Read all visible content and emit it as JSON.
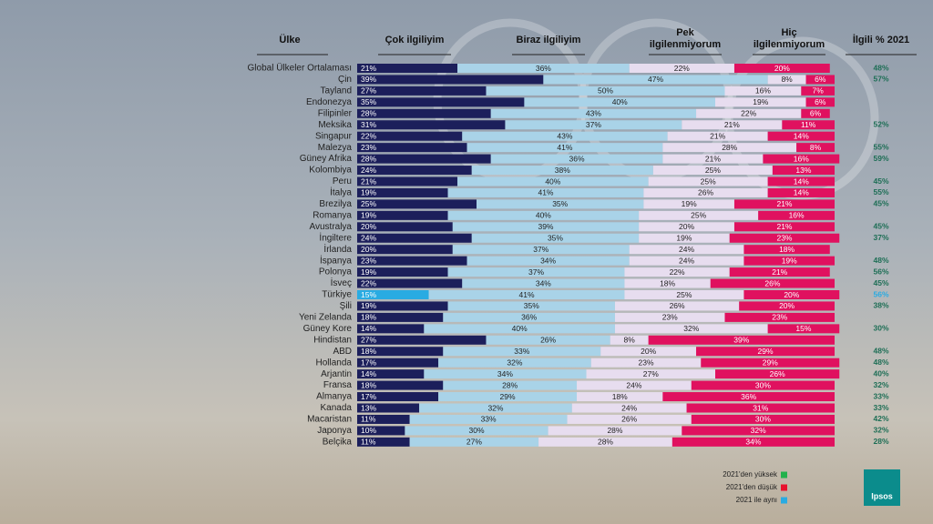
{
  "chart_data": {
    "type": "stacked_bar_table",
    "category_header": "Ülke",
    "categories": [
      "Global Ülkeler Ortalaması",
      "Çin",
      "Tayland",
      "Endonezya",
      "Filipinler",
      "Meksika",
      "Singapur",
      "Malezya",
      "Güney Afrika",
      "Kolombiya",
      "Peru",
      "İtalya",
      "Brezilya",
      "Romanya",
      "Avustralya",
      "İngiltere",
      "İrlanda",
      "İspanya",
      "Polonya",
      "İsveç",
      "Türkiye",
      "Şili",
      "Yeni Zelanda",
      "Güney Kore",
      "Hindistan",
      "ABD",
      "Hollanda",
      "Arjantin",
      "Fransa",
      "Almanya",
      "Kanada",
      "Macaristan",
      "Japonya",
      "Belçika"
    ],
    "xlim": [
      0,
      100
    ],
    "series": [
      {
        "name": "Çok ilgiliyim",
        "color": "#1c1f5b",
        "values": [
          21,
          39,
          27,
          35,
          28,
          31,
          22,
          23,
          28,
          24,
          21,
          19,
          25,
          19,
          20,
          24,
          20,
          23,
          19,
          22,
          15,
          19,
          18,
          14,
          27,
          18,
          17,
          14,
          18,
          17,
          13,
          11,
          10,
          11
        ],
        "value_labels": [
          "21%",
          "39%",
          "27%",
          "35%",
          "28%",
          "31%",
          "22%",
          "23%",
          "28%",
          "24%",
          "21%",
          "19%",
          "25%",
          "19%",
          "20%",
          "24%",
          "20%",
          "23%",
          "19%",
          "22%",
          "15%",
          "19%",
          "18%",
          "14%",
          "27%",
          "18%",
          "17%",
          "14%",
          "18%",
          "17%",
          "13%",
          "11%",
          "10%",
          "11%"
        ]
      },
      {
        "name": "Biraz ilgiliyim",
        "color": "#a9d3e8",
        "values": [
          36,
          47,
          50,
          40,
          43,
          37,
          43,
          41,
          36,
          38,
          40,
          41,
          35,
          40,
          39,
          35,
          37,
          34,
          37,
          34,
          41,
          35,
          36,
          40,
          26,
          33,
          32,
          34,
          28,
          29,
          32,
          33,
          30,
          27
        ],
        "value_labels": [
          "36%",
          "47%",
          "50%",
          "40%",
          "43%",
          "37%",
          "43%",
          "41%",
          "36%",
          "38%",
          "40%",
          "41%",
          "35%",
          "40%",
          "39%",
          "35%",
          "37%",
          "34%",
          "37%",
          "34%",
          "41%",
          "35%",
          "36%",
          "40%",
          "26%",
          "33%",
          "32%",
          "34%",
          "28%",
          "29%",
          "32%",
          "33%",
          "30%",
          "27%"
        ]
      },
      {
        "name": "Pek ilgilenmiyorum",
        "color": "#e7ddef",
        "values": [
          22,
          8,
          16,
          19,
          22,
          21,
          21,
          28,
          21,
          25,
          25,
          26,
          19,
          25,
          20,
          19,
          24,
          24,
          22,
          18,
          25,
          26,
          23,
          32,
          8,
          20,
          23,
          27,
          24,
          18,
          24,
          26,
          28,
          28
        ],
        "value_labels": [
          "22%",
          "8%",
          "16%",
          "19%",
          "22%",
          "21%",
          "21%",
          "28%",
          "21%",
          "25%",
          "25%",
          "26%",
          "19%",
          "25%",
          "20%",
          "19%",
          "24%",
          "24%",
          "22%",
          "18%",
          "25%",
          "26%",
          "23%",
          "32%",
          "8%",
          "20%",
          "23%",
          "27%",
          "24%",
          "18%",
          "24%",
          "26%",
          "28%",
          "28%"
        ]
      },
      {
        "name": "Hiç ilgilenmiyorum",
        "color": "#e0115f",
        "values": [
          20,
          6,
          7,
          6,
          6,
          11,
          14,
          8,
          16,
          13,
          14,
          14,
          21,
          16,
          21,
          23,
          18,
          19,
          21,
          26,
          20,
          20,
          23,
          15,
          39,
          29,
          29,
          26,
          30,
          36,
          31,
          30,
          32,
          34
        ],
        "value_labels": [
          "20%",
          "6%",
          "7%",
          "6%",
          "6%",
          "11%",
          "14%",
          "8%",
          "16%",
          "13%",
          "14%",
          "14%",
          "21%",
          "16%",
          "21%",
          "23%",
          "18%",
          "19%",
          "21%",
          "26%",
          "20%",
          "20%",
          "23%",
          "15%",
          "39%",
          "29%",
          "29%",
          "26%",
          "30%",
          "36%",
          "31%",
          "30%",
          "32%",
          "34%"
        ]
      }
    ],
    "highlight": {
      "index": 20,
      "color": "#29abe2"
    },
    "ilgili_2021": {
      "header": "İlgili % 2021",
      "values": [
        48,
        57,
        null,
        null,
        null,
        52,
        null,
        55,
        59,
        null,
        45,
        55,
        45,
        null,
        45,
        37,
        null,
        48,
        56,
        45,
        56,
        38,
        null,
        30,
        null,
        48,
        48,
        40,
        32,
        33,
        33,
        42,
        32,
        28
      ],
      "value_labels": [
        "48%",
        "57%",
        null,
        null,
        null,
        "52%",
        null,
        "55%",
        "59%",
        null,
        "45%",
        "55%",
        "45%",
        null,
        "45%",
        "37%",
        null,
        "48%",
        "56%",
        "45%",
        "56%",
        "38%",
        null,
        "30%",
        null,
        "48%",
        "48%",
        "40%",
        "32%",
        "33%",
        "33%",
        "42%",
        "32%",
        "28%"
      ],
      "colors": [
        "#1d6e55",
        "#1d6e55",
        null,
        null,
        null,
        "#1d6e55",
        null,
        "#1d6e55",
        "#1d6e55",
        null,
        "#1d6e55",
        "#1d6e55",
        "#1d6e55",
        null,
        "#1d6e55",
        "#1d6e55",
        null,
        "#1d6e55",
        "#1d6e55",
        "#1d6e55",
        "#29abe2",
        "#1d6e55",
        null,
        "#1d6e55",
        null,
        "#1d6e55",
        "#1d6e55",
        "#1d6e55",
        "#1d6e55",
        "#1d6e55",
        "#1d6e55",
        "#1d6e55",
        "#1d6e55",
        "#1d6e55"
      ]
    },
    "legend": [
      {
        "label": "2021'den yüksek",
        "color": "#22b14c"
      },
      {
        "label": "2021'den düşük",
        "color": "#e8112d"
      },
      {
        "label": "2021 ile aynı",
        "color": "#29abe2"
      }
    ],
    "logo": "Ipsos"
  }
}
